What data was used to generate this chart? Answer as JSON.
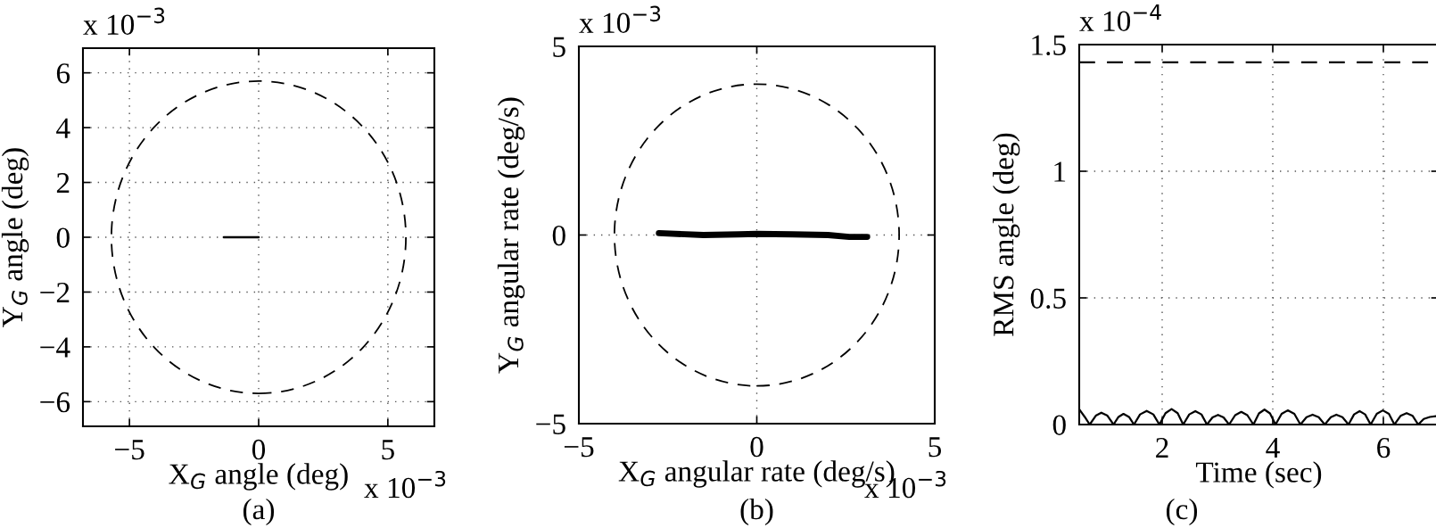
{
  "chart_data": [
    {
      "type": "line",
      "xlabel": "X$_{G}$ angle (deg)",
      "ylabel": "Y$_{G}$ angle (deg)",
      "xlim": [
        -6.8,
        6.8
      ],
      "ylim": [
        -6.9,
        6.9
      ],
      "xticks": [
        -5,
        0,
        5
      ],
      "yticks": [
        -6,
        -4,
        -2,
        0,
        2,
        4,
        6
      ],
      "grid": true,
      "annotations": [
        "x 10$^{−3}$",
        "x 10$^{−3}$",
        "(a)"
      ],
      "series": [
        {
          "color": "#000000",
          "line_style": "solid",
          "x": [
            -1.35,
            -0.7,
            0
          ],
          "values": [
            0,
            0,
            0
          ]
        }
      ]
    },
    {
      "type": "line",
      "xlabel": "X$_{G}$ angular rate (deg/s)",
      "ylabel": "Y$_{G}$ angular rate (deg/s)",
      "xlim": [
        -5,
        5
      ],
      "ylim": [
        -5,
        5
      ],
      "xticks": [
        -5,
        0,
        5
      ],
      "yticks": [
        -5,
        0,
        5
      ],
      "grid": true,
      "annotations": [
        "x 10$^{−3}$",
        "x 10$^{−3}$",
        "(b)"
      ],
      "series": [
        {
          "color": "#000000",
          "line_style": "solid",
          "x": [
            -2.75,
            -1.5,
            -0.5,
            0,
            1,
            2,
            2.6,
            3.1
          ],
          "values": [
            0.05,
            0.0,
            0.02,
            0.03,
            0.02,
            0.0,
            -0.05,
            -0.05
          ]
        }
      ]
    },
    {
      "type": "line",
      "xlabel": "Time (sec)",
      "ylabel": "RMS angle (deg)",
      "xlim": [
        0.5,
        7
      ],
      "ylim": [
        0,
        1.5
      ],
      "xticks": [
        2,
        4,
        6
      ],
      "yticks": [
        0,
        0.5,
        1,
        1.5
      ],
      "grid": true,
      "annotations": [
        "x 10$^{−4}$",
        "(c)"
      ],
      "ref_lines": [
        {
          "axis": "y",
          "value": 1.43,
          "color": "#000000",
          "line_style": "dashed"
        }
      ],
      "series": [
        {
          "color": "#000000",
          "line_style": "solid",
          "x": [
            0.5,
            0.6,
            0.69,
            0.8,
            0.9,
            1.01,
            1.12,
            1.21,
            1.3,
            1.4,
            1.49,
            1.6,
            1.72,
            1.84,
            1.95,
            2.06,
            2.17,
            2.28,
            2.38,
            2.49,
            2.6,
            2.71,
            2.81,
            2.91,
            3.01,
            3.11,
            3.21,
            3.32,
            3.43,
            3.54,
            3.65,
            3.75,
            3.85,
            3.95,
            4.05,
            4.16,
            4.27,
            4.39,
            4.5,
            4.61,
            4.72,
            4.83,
            4.94,
            5.05,
            5.15,
            5.26,
            5.37,
            5.47,
            5.57,
            5.67,
            5.77,
            5.88,
            5.99,
            6.1,
            6.2,
            6.31,
            6.42,
            6.53,
            6.63,
            6.73,
            6.84,
            6.95
          ],
          "values": [
            0.06,
            0.03,
            0,
            0.035,
            0.047,
            0.035,
            0,
            0.03,
            0.042,
            0.03,
            0,
            0.04,
            0.054,
            0.04,
            0,
            0.045,
            0.061,
            0.045,
            0,
            0.04,
            0.053,
            0.04,
            0,
            0.028,
            0.038,
            0.028,
            0,
            0.037,
            0.05,
            0.037,
            0,
            0.044,
            0.059,
            0.044,
            0,
            0.042,
            0.056,
            0.042,
            0,
            0.029,
            0.039,
            0.029,
            0,
            0.029,
            0.039,
            0.029,
            0,
            0.04,
            0.053,
            0.04,
            0,
            0.042,
            0.056,
            0.042,
            0,
            0.034,
            0.045,
            0.034,
            0,
            0.022,
            0.03,
            0.033
          ]
        }
      ]
    }
  ]
}
